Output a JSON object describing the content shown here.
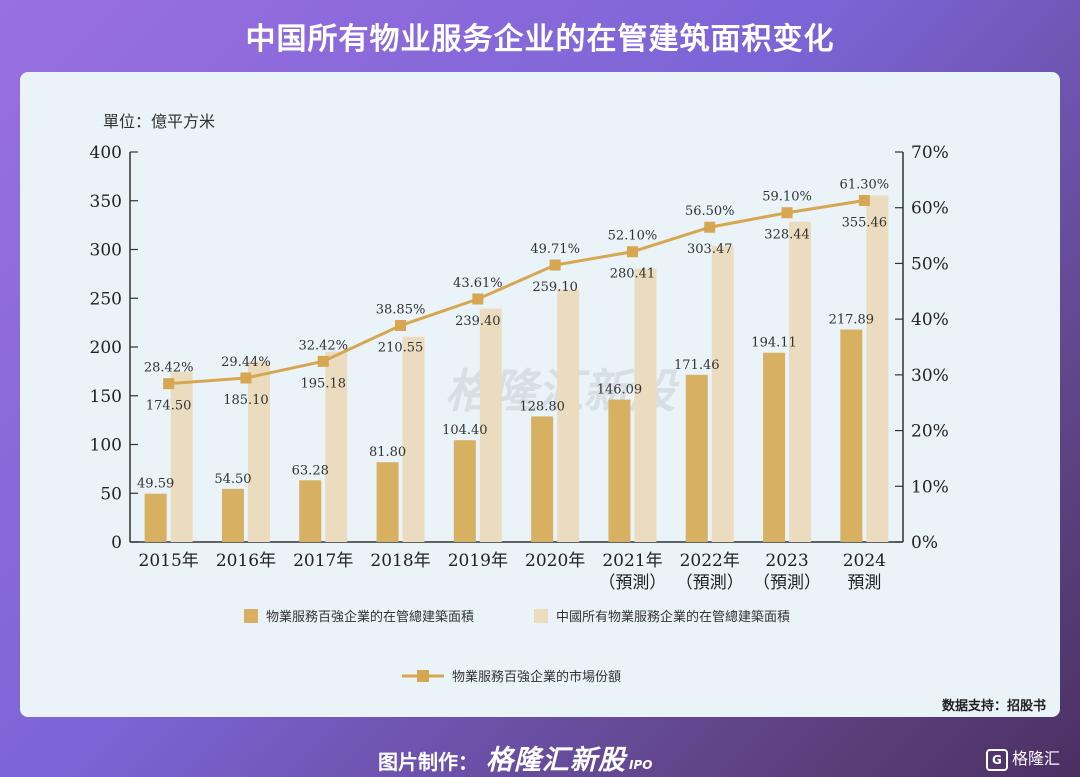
{
  "header": {
    "title": "中国所有物业服务企业的在管建筑面积变化"
  },
  "unit_label": "單位：億平方米",
  "source_note": "数据支持：招股书",
  "footer": {
    "credit_label": "图片制作：",
    "brand": "格隆汇新股",
    "brand_sub": "IPO",
    "corner_logo": "格隆汇"
  },
  "watermark": "格隆汇新股",
  "colors": {
    "bar_top100": "#d8b062",
    "bar_all": "#ebdcbf",
    "line": "#d6a650",
    "axis": "#333333"
  },
  "chart_data": {
    "type": "bar",
    "categories": [
      "2015年",
      "2016年",
      "2017年",
      "2018年",
      "2019年",
      "2020年",
      "2021年\n（預測）",
      "2022年\n（預測）",
      "2023\n（預測）",
      "2024\n預測"
    ],
    "series": [
      {
        "name": "物業服務百強企業的在管總建築面積",
        "values": [
          49.59,
          54.5,
          63.28,
          81.8,
          104.4,
          128.8,
          146.09,
          171.46,
          194.11,
          217.89
        ]
      },
      {
        "name": "中國所有物業服務企業的在管總建築面積",
        "values": [
          174.5,
          185.1,
          195.18,
          210.55,
          239.4,
          259.1,
          280.41,
          303.47,
          328.44,
          355.46
        ]
      }
    ],
    "line_series": {
      "name": "物業服務百強企業的市場份額",
      "values": [
        28.42,
        29.44,
        32.42,
        38.85,
        43.61,
        49.71,
        52.1,
        56.5,
        59.1,
        61.3
      ]
    },
    "value_labels": [
      "49.59",
      "54.50",
      "63.28",
      "81.80",
      "104.40",
      "128.80",
      "146.09",
      "171.46",
      "194.11",
      "217.89"
    ],
    "value_labels_all": [
      "174.50",
      "185.10",
      "195.18",
      "210.55",
      "239.40",
      "259.10",
      "280.41",
      "303.47",
      "328.44",
      "355.46"
    ],
    "pct_labels": [
      "28.42%",
      "29.44%",
      "32.42%",
      "38.85%",
      "43.61%",
      "49.71%",
      "52.10%",
      "56.50%",
      "59.10%",
      "61.30%"
    ],
    "y_left": {
      "min": 0,
      "max": 400,
      "ticks": [
        "0",
        "50",
        "100",
        "150",
        "200",
        "250",
        "300",
        "350",
        "400"
      ]
    },
    "y_right": {
      "min": 0,
      "max": 70,
      "ticks": [
        "0%",
        "10%",
        "20%",
        "30%",
        "40%",
        "50%",
        "60%",
        "70%"
      ]
    },
    "legend": {
      "bar1": "物業服務百強企業的在管總建築面積",
      "bar2": "中國所有物業服務企業的在管總建築面積",
      "line": "物業服務百強企業的市場份額"
    }
  }
}
